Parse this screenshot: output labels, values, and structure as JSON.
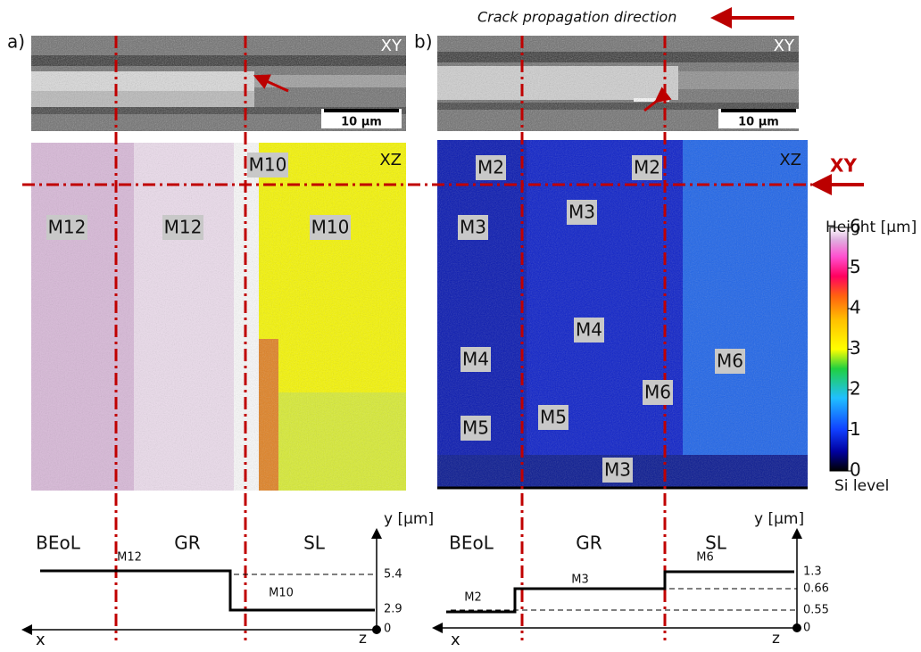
{
  "panel_a": {
    "label": "a)",
    "sem": {
      "view": "XY",
      "scale_bar": "10 µm"
    },
    "map": {
      "view": "XZ",
      "regions": [
        "M10",
        "M12",
        "M12",
        "M10"
      ]
    },
    "profile": {
      "regions": [
        "BEoL",
        "GR",
        "SL"
      ],
      "axis_label": "y [µm]",
      "levels": [
        "M12",
        "M10"
      ],
      "ticks": [
        "5.4",
        "2.9",
        "0"
      ],
      "x_label": "x",
      "z_label": "z"
    }
  },
  "panel_b": {
    "label": "b)",
    "sem": {
      "view": "XY",
      "scale_bar": "10 µm"
    },
    "map": {
      "view": "XZ",
      "regions": [
        "M2",
        "M2",
        "M3",
        "M3",
        "M4",
        "M4",
        "M6",
        "M6",
        "M5",
        "M5",
        "M3"
      ]
    },
    "profile": {
      "regions": [
        "BEoL",
        "GR",
        "SL"
      ],
      "axis_label": "y [µm]",
      "levels": [
        "M2",
        "M3",
        "M6"
      ],
      "ticks": [
        "1.3",
        "0.66",
        "0.55",
        "0"
      ],
      "x_label": "x",
      "z_label": "z"
    }
  },
  "crack_direction": "Crack propagation direction",
  "xy_marker": "XY",
  "colorbar": {
    "title": "Height [µm]",
    "ticks": [
      "6",
      "5",
      "4",
      "3",
      "2",
      "1",
      "0"
    ],
    "bottom_label": "Si level"
  }
}
